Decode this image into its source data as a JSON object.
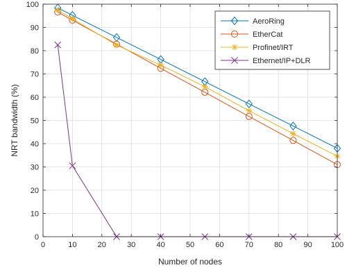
{
  "chart_data": {
    "type": "line",
    "title": "",
    "xlabel": "Number of nodes",
    "ylabel": "NRT bandwidth (%)",
    "xlim": [
      0,
      100
    ],
    "ylim": [
      0,
      100
    ],
    "xticks": [
      0,
      10,
      20,
      30,
      40,
      50,
      60,
      70,
      80,
      90,
      100
    ],
    "yticks": [
      0,
      10,
      20,
      30,
      40,
      50,
      60,
      70,
      80,
      90,
      100
    ],
    "grid": true,
    "legend_position": "top-right",
    "x": [
      5,
      10,
      25,
      40,
      55,
      70,
      85,
      100
    ],
    "series": [
      {
        "name": "AeroRing",
        "color": "#0072BD",
        "marker": "diamond",
        "values": [
          98.4,
          95.2,
          85.7,
          76.2,
          66.7,
          57.1,
          47.6,
          38.0
        ]
      },
      {
        "name": "EtherCat",
        "color": "#D95319",
        "marker": "circle",
        "values": [
          96.6,
          93.1,
          82.8,
          72.4,
          62.1,
          51.7,
          41.4,
          31.0
        ]
      },
      {
        "name": "Profinet/IRT",
        "color": "#EDB120",
        "marker": "asterisk",
        "values": [
          97.5,
          93.7,
          82.4,
          73.8,
          64.5,
          54.2,
          44.3,
          34.6
        ]
      },
      {
        "name": "Ethernet/IP+DLR",
        "color": "#7E2F8E",
        "marker": "x",
        "values": [
          82.5,
          30.5,
          0,
          0,
          0,
          0,
          0,
          0
        ]
      }
    ]
  }
}
